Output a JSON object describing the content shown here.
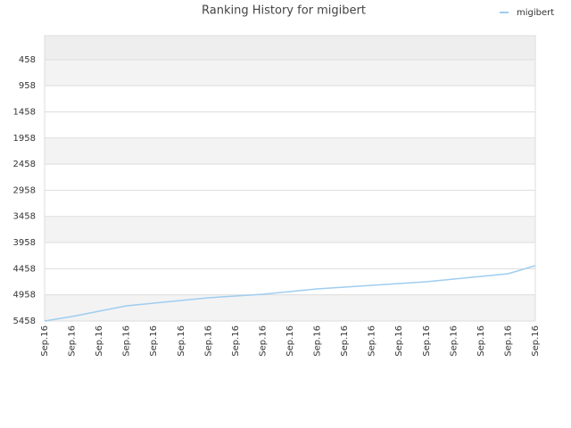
{
  "chart_data": {
    "type": "line",
    "title": "Ranking History for migibert",
    "categories": [
      "Sep.16",
      "Sep.16",
      "Sep.16",
      "Sep.16",
      "Sep.16",
      "Sep.16",
      "Sep.16",
      "Sep.16",
      "Sep.16",
      "Sep.16",
      "Sep.16",
      "Sep.16",
      "Sep.16",
      "Sep.16",
      "Sep.16",
      "Sep.16",
      "Sep.16",
      "Sep.16",
      "Sep.16"
    ],
    "series": [
      {
        "name": "migibert",
        "color": "#9fcdf0",
        "values": [
          5458,
          5373,
          5270,
          5168,
          5117,
          5066,
          5014,
          4980,
          4946,
          4895,
          4844,
          4810,
          4776,
          4742,
          4708,
          4656,
          4605,
          4554,
          4400
        ]
      }
    ],
    "ylim": [
      5458,
      0
    ],
    "yticks": [
      458,
      958,
      1458,
      1958,
      2458,
      2958,
      3458,
      3958,
      4458,
      4958,
      5458
    ],
    "grid": true,
    "legend": "top-right"
  }
}
